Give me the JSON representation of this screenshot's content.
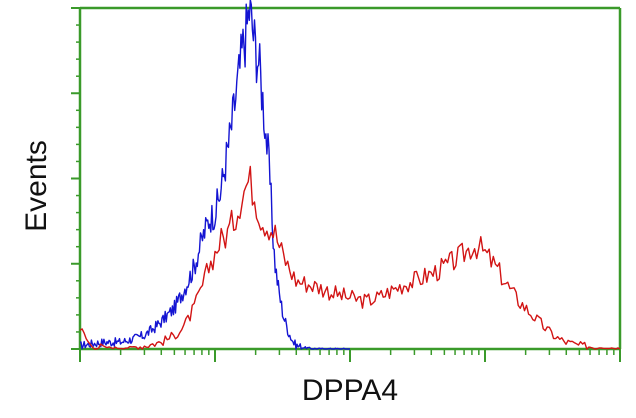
{
  "chart_data": {
    "type": "line",
    "title": "",
    "xlabel": "DPPA4",
    "ylabel": "Events",
    "x_scale": "log",
    "xlim": [
      1,
      10000
    ],
    "ylim": [
      0,
      100
    ],
    "grid": false,
    "legend": "none",
    "x_tick_labels": [],
    "y_tick_labels": [],
    "colors": {
      "axis": "#3a9a2a",
      "blue": "#1414d2",
      "red": "#d21414",
      "text": "#111111"
    },
    "series": [
      {
        "color": "#1414d2",
        "x": [
          1,
          1.2,
          1.5,
          2,
          2.5,
          3,
          3.5,
          4,
          5,
          6,
          7,
          8,
          9,
          10,
          11,
          12,
          13,
          14,
          15,
          16,
          17,
          18,
          19,
          20,
          21,
          22,
          23,
          24,
          25,
          26,
          27,
          28,
          30,
          32,
          35,
          38,
          40,
          45,
          50,
          60,
          70,
          80,
          100
        ],
        "y": [
          1,
          1.5,
          2,
          2,
          3,
          4,
          6,
          8,
          12,
          18,
          24,
          32,
          38,
          40,
          46,
          55,
          63,
          72,
          80,
          88,
          93,
          100,
          94,
          88,
          85,
          78,
          70,
          62,
          55,
          44,
          32,
          24,
          16,
          10,
          5,
          2,
          1,
          0.5,
          0.2,
          0,
          0,
          0,
          0
        ]
      },
      {
        "color": "#d21414",
        "x": [
          1,
          1.2,
          1.5,
          2,
          2.5,
          3,
          4,
          5,
          6,
          7,
          8,
          9,
          10,
          11,
          12,
          13,
          14,
          15,
          16,
          17,
          18,
          20,
          22,
          25,
          28,
          30,
          35,
          40,
          50,
          60,
          80,
          100,
          130,
          160,
          200,
          250,
          300,
          400,
          500,
          600,
          700,
          800,
          900,
          1000,
          1100,
          1200,
          1300,
          1500,
          1700,
          2000,
          2500,
          3000,
          3500,
          4000,
          5000,
          7000,
          10000
        ],
        "y": [
          6,
          1,
          0.5,
          0.3,
          0.5,
          1,
          2,
          4,
          7,
          12,
          18,
          24,
          28,
          32,
          33,
          36,
          38,
          42,
          46,
          48,
          50,
          44,
          38,
          36,
          34,
          30,
          24,
          20,
          19,
          18,
          16,
          15,
          14,
          15,
          17,
          19,
          20,
          22,
          24,
          26,
          28,
          30,
          30,
          28,
          26,
          24,
          22,
          18,
          15,
          12,
          8,
          5,
          3,
          2,
          1,
          0.5,
          0.2
        ]
      }
    ]
  }
}
